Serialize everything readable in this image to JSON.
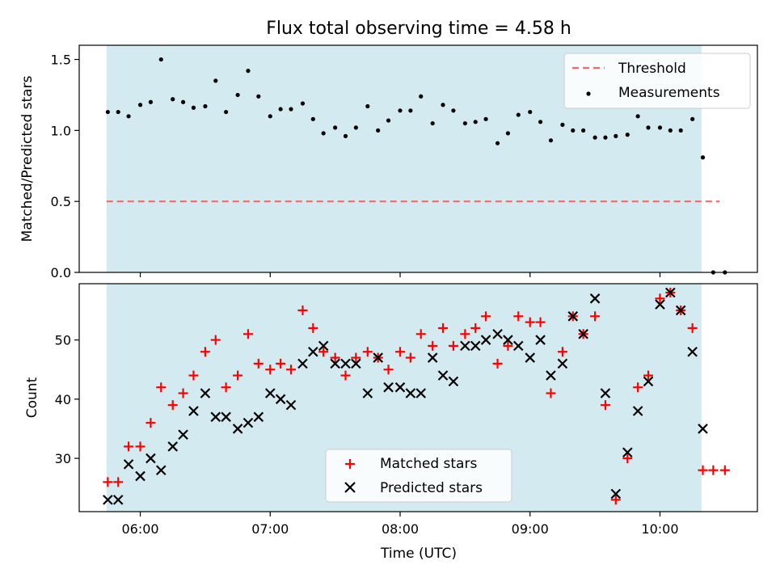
{
  "title": "Flux total observing time = 4.58 h",
  "colors": {
    "shade": "#d3eaf0",
    "threshold": "#f26b6b",
    "measurement": "#000000",
    "matched": "#ff0000",
    "predicted": "#000000"
  },
  "chart_data": [
    {
      "type": "scatter",
      "ylabel": "Matched/Predicted stars",
      "ylim": [
        0,
        1.6
      ],
      "xlim": [
        5.53,
        10.75
      ],
      "yticks": [
        "0.0",
        "0.5",
        "1.0",
        "1.5"
      ],
      "ytick_values": [
        0,
        0.5,
        1.0,
        1.5
      ],
      "shaded_x": [
        5.74,
        10.32
      ],
      "legend": {
        "position": "top-right",
        "entries": [
          "Threshold",
          "Measurements"
        ]
      },
      "threshold": {
        "name": "Threshold",
        "y": 0.5,
        "x": [
          5.74,
          10.46
        ]
      },
      "series": [
        {
          "name": "Measurements",
          "x": [
            5.75,
            5.83,
            5.91,
            6.0,
            6.08,
            6.16,
            6.25,
            6.33,
            6.41,
            6.5,
            6.58,
            6.66,
            6.75,
            6.83,
            6.91,
            7.0,
            7.08,
            7.16,
            7.25,
            7.33,
            7.41,
            7.5,
            7.58,
            7.66,
            7.75,
            7.83,
            7.91,
            8.0,
            8.08,
            8.16,
            8.25,
            8.33,
            8.41,
            8.5,
            8.58,
            8.66,
            8.75,
            8.83,
            8.91,
            9.0,
            9.08,
            9.16,
            9.25,
            9.33,
            9.41,
            9.5,
            9.58,
            9.66,
            9.75,
            9.83,
            9.91,
            10.0,
            10.08,
            10.16,
            10.25,
            10.33,
            10.41,
            10.5
          ],
          "y": [
            1.13,
            1.13,
            1.1,
            1.18,
            1.2,
            1.5,
            1.22,
            1.2,
            1.16,
            1.17,
            1.35,
            1.13,
            1.25,
            1.42,
            1.24,
            1.1,
            1.15,
            1.15,
            1.19,
            1.08,
            0.98,
            1.02,
            0.96,
            1.02,
            1.17,
            1.0,
            1.07,
            1.14,
            1.14,
            1.24,
            1.05,
            1.18,
            1.14,
            1.05,
            1.06,
            1.08,
            0.91,
            0.98,
            1.11,
            1.13,
            1.06,
            0.93,
            1.04,
            1.0,
            1.0,
            0.95,
            0.95,
            0.96,
            0.97,
            1.1,
            1.02,
            1.02,
            1.0,
            1.0,
            1.08,
            0.81,
            0.0,
            0.0
          ]
        }
      ]
    },
    {
      "type": "scatter",
      "xlabel": "Time (UTC)",
      "ylabel": "Count",
      "ylim": [
        21,
        59.5
      ],
      "xlim": [
        5.53,
        10.75
      ],
      "yticks": [
        "30",
        "40",
        "50"
      ],
      "ytick_values": [
        30,
        40,
        50
      ],
      "xticks": [
        "06:00",
        "07:00",
        "08:00",
        "09:00",
        "10:00"
      ],
      "xtick_values": [
        6,
        7,
        8,
        9,
        10
      ],
      "shaded_x": [
        5.74,
        10.32
      ],
      "legend": {
        "position": "lower-center",
        "entries": [
          "Matched stars",
          "Predicted stars"
        ]
      },
      "series": [
        {
          "name": "Matched stars",
          "marker": "+",
          "x": [
            5.75,
            5.83,
            5.91,
            6.0,
            6.08,
            6.16,
            6.25,
            6.33,
            6.41,
            6.5,
            6.58,
            6.66,
            6.75,
            6.83,
            6.91,
            7.0,
            7.08,
            7.16,
            7.25,
            7.33,
            7.41,
            7.5,
            7.58,
            7.66,
            7.75,
            7.83,
            7.91,
            8.0,
            8.08,
            8.16,
            8.25,
            8.33,
            8.41,
            8.5,
            8.58,
            8.66,
            8.75,
            8.83,
            8.91,
            9.0,
            9.08,
            9.16,
            9.25,
            9.33,
            9.41,
            9.5,
            9.58,
            9.66,
            9.75,
            9.83,
            9.91,
            10.0,
            10.08,
            10.16,
            10.25,
            10.33,
            10.41,
            10.5
          ],
          "y": [
            26,
            26,
            32,
            32,
            36,
            42,
            39,
            41,
            44,
            48,
            50,
            42,
            44,
            51,
            46,
            45,
            46,
            45,
            55,
            52,
            48,
            47,
            44,
            47,
            48,
            47,
            45,
            48,
            47,
            51,
            49,
            52,
            49,
            51,
            52,
            54,
            46,
            49,
            54,
            53,
            53,
            41,
            48,
            54,
            51,
            54,
            39,
            23,
            30,
            42,
            44,
            57,
            58,
            55,
            52,
            28,
            28,
            28
          ]
        },
        {
          "name": "Predicted stars",
          "marker": "x",
          "x": [
            5.75,
            5.83,
            5.91,
            6.0,
            6.08,
            6.16,
            6.25,
            6.33,
            6.41,
            6.5,
            6.58,
            6.66,
            6.75,
            6.83,
            6.91,
            7.0,
            7.08,
            7.16,
            7.25,
            7.33,
            7.41,
            7.5,
            7.58,
            7.66,
            7.75,
            7.83,
            7.91,
            8.0,
            8.08,
            8.16,
            8.25,
            8.33,
            8.41,
            8.5,
            8.58,
            8.66,
            8.75,
            8.83,
            8.91,
            9.0,
            9.08,
            9.16,
            9.25,
            9.33,
            9.41,
            9.5,
            9.58,
            9.66,
            9.75,
            9.83,
            9.91,
            10.0,
            10.08,
            10.16,
            10.25,
            10.33
          ],
          "y": [
            23,
            23,
            29,
            27,
            30,
            28,
            32,
            34,
            38,
            41,
            37,
            37,
            35,
            36,
            37,
            41,
            40,
            39,
            46,
            48,
            49,
            46,
            46,
            46,
            41,
            47,
            42,
            42,
            41,
            41,
            47,
            44,
            43,
            49,
            49,
            50,
            51,
            50,
            49,
            47,
            50,
            44,
            46,
            54,
            51,
            57,
            41,
            24,
            31,
            38,
            43,
            56,
            58,
            55,
            48,
            35
          ]
        }
      ]
    }
  ]
}
